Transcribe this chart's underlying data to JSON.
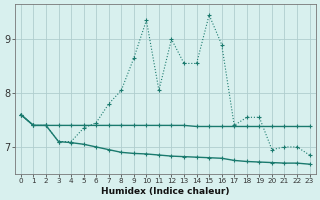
{
  "xlabel": "Humidex (Indice chaleur)",
  "x_values": [
    0,
    1,
    2,
    3,
    4,
    5,
    6,
    7,
    8,
    9,
    10,
    11,
    12,
    13,
    14,
    15,
    16,
    17,
    18,
    19,
    20,
    21,
    22,
    23
  ],
  "line1_y": [
    7.6,
    7.4,
    7.4,
    7.1,
    7.1,
    7.35,
    7.45,
    7.8,
    8.05,
    8.65,
    9.35,
    8.05,
    9.0,
    8.55,
    8.55,
    9.45,
    8.9,
    7.4,
    7.55,
    7.55,
    6.95,
    7.0,
    7.0,
    6.85
  ],
  "line2_y": [
    7.6,
    7.4,
    7.4,
    7.4,
    7.4,
    7.4,
    7.4,
    7.4,
    7.4,
    7.4,
    7.4,
    7.4,
    7.4,
    7.4,
    7.38,
    7.38,
    7.38,
    7.38,
    7.38,
    7.38,
    7.38,
    7.38,
    7.38,
    7.38
  ],
  "line3_y": [
    7.6,
    7.4,
    7.4,
    7.1,
    7.08,
    7.05,
    7.0,
    6.95,
    6.9,
    6.88,
    6.87,
    6.85,
    6.83,
    6.82,
    6.81,
    6.8,
    6.79,
    6.75,
    6.73,
    6.72,
    6.71,
    6.7,
    6.7,
    6.68
  ],
  "line_color": "#1a7a6e",
  "bg_color": "#d8f0ee",
  "grid_color": "#b0cece",
  "ylim": [
    6.5,
    9.65
  ],
  "yticks": [
    7,
    8,
    9
  ],
  "figsize": [
    3.2,
    2.0
  ],
  "dpi": 100
}
